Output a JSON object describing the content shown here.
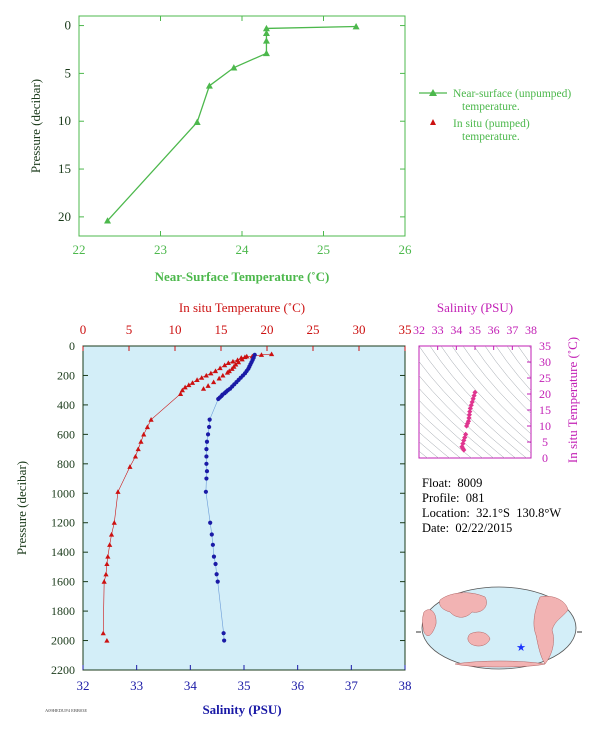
{
  "colors": {
    "near_surface": "#4cb84c",
    "in_situ": "#cc1111",
    "salinity": "#1a1aa6",
    "ts_panel": "#c21fb5",
    "plot_bg": "#d3eef8",
    "axis_dark": "#1a3a1a"
  },
  "info": {
    "float": "Float:  8009",
    "profile": "Profile:  081",
    "location": "Location:  32.1°S  130.8°W",
    "date": "Date:  02/22/2015"
  },
  "map": {
    "marker": "star",
    "marker_color": "#1a33ff"
  },
  "footer_code": "A09HEDUP4 EBB03E",
  "chart_data": [
    {
      "id": "near-surface",
      "type": "line",
      "xlabel": "Near-Surface Temperature (˚C)",
      "ylabel": "Pressure (decibar)",
      "xlim": [
        22,
        26
      ],
      "ylim": [
        22,
        -1
      ],
      "xticks": [
        22,
        23,
        24,
        25,
        26
      ],
      "yticks": [
        0,
        5,
        10,
        15,
        20
      ],
      "legend": [
        "Near-surface (unpumped) temperature.",
        "In situ (pumped) temperature."
      ],
      "legend_position": "right",
      "series": [
        {
          "name": "Near-surface (unpumped) temperature.",
          "marker": "triangle",
          "x": [
            22.35,
            23.45,
            23.6,
            23.9,
            24.3,
            24.3,
            24.3,
            24.3,
            25.4
          ],
          "y": [
            20.4,
            10.1,
            6.3,
            4.4,
            2.9,
            1.6,
            0.8,
            0.3,
            0.1
          ]
        }
      ]
    },
    {
      "id": "main-profile",
      "type": "scatter",
      "title_top": "In situ Temperature (˚C)",
      "xlabel": "Salinity (PSU)",
      "ylabel": "Pressure (decibar)",
      "ylim": [
        2200,
        0
      ],
      "yticks": [
        0,
        200,
        400,
        600,
        800,
        1000,
        1200,
        1400,
        1600,
        1800,
        2000,
        2200
      ],
      "top_axis": {
        "lim": [
          0,
          35
        ],
        "ticks": [
          0,
          5,
          10,
          15,
          20,
          25,
          30,
          35
        ]
      },
      "bottom_axis": {
        "lim": [
          32,
          38
        ],
        "ticks": [
          32,
          33,
          34,
          35,
          36,
          37,
          38
        ]
      },
      "series": [
        {
          "name": "In situ Temperature",
          "axis": "top",
          "marker": "triangle",
          "x": [
            20.5,
            19.4,
            18.4,
            17.6,
            17.2,
            16.8,
            16.3,
            15.8,
            15.4,
            14.9,
            14.4,
            13.9,
            13.4,
            12.9,
            12.4,
            11.9,
            11.5,
            11.1,
            10.8,
            10.6,
            7.4,
            7.0,
            6.6,
            6.3,
            6.0,
            5.7,
            5.1,
            3.8,
            3.4,
            3.1,
            2.9,
            2.7,
            2.6,
            2.5,
            2.3,
            2.2
          ],
          "y": [
            55,
            60,
            70,
            75,
            80,
            95,
            105,
            115,
            130,
            150,
            170,
            185,
            200,
            215,
            230,
            250,
            265,
            280,
            300,
            325,
            500,
            550,
            600,
            650,
            700,
            750,
            820,
            990,
            1200,
            1280,
            1350,
            1430,
            1480,
            1550,
            1600,
            1950
          ]
        },
        {
          "name": "In situ Temperature (surface cluster)",
          "axis": "top",
          "marker": "triangle",
          "x": [
            17.8,
            17.3,
            16.9,
            16.6,
            16.4,
            16.2,
            15.9,
            15.7,
            15.2,
            14.8,
            14.2,
            13.6,
            13.1,
            2.6
          ],
          "y": [
            70,
            90,
            110,
            125,
            140,
            155,
            170,
            180,
            200,
            220,
            245,
            270,
            290,
            2000
          ]
        },
        {
          "name": "Salinity",
          "axis": "bottom",
          "marker": "circle",
          "x": [
            35.2,
            35.18,
            35.16,
            35.14,
            35.12,
            35.1,
            35.08,
            35.05,
            35.02,
            34.98,
            34.94,
            34.9,
            34.86,
            34.82,
            34.78,
            34.74,
            34.7,
            34.67,
            34.64,
            34.6,
            34.58,
            34.55,
            34.52,
            34.36,
            34.35,
            34.33,
            34.31,
            34.3,
            34.3,
            34.3,
            34.31,
            34.3,
            34.29,
            34.37,
            34.4,
            34.42,
            34.44,
            34.47,
            34.49,
            34.51,
            34.62,
            34.63
          ],
          "y": [
            60,
            80,
            95,
            110,
            125,
            140,
            155,
            170,
            185,
            200,
            215,
            230,
            245,
            260,
            275,
            290,
            300,
            310,
            320,
            330,
            340,
            350,
            360,
            500,
            550,
            600,
            650,
            700,
            750,
            800,
            850,
            900,
            990,
            1200,
            1280,
            1350,
            1430,
            1480,
            1550,
            1600,
            1950,
            2000
          ]
        }
      ]
    },
    {
      "id": "ts-diagram",
      "type": "scatter",
      "title_top": "Salinity (PSU)",
      "ylabel": "In situ Temperature (˚C)",
      "xticks": [
        32,
        33,
        34,
        35,
        36,
        37,
        38
      ],
      "xlim": [
        32,
        38
      ],
      "yticks": [
        0,
        5,
        10,
        15,
        20,
        25,
        30,
        35
      ],
      "ylim": [
        0,
        35
      ],
      "grid": "density-contours",
      "series": [
        {
          "name": "T-S",
          "marker": "diamond",
          "x": [
            35.0,
            34.95,
            34.9,
            34.85,
            34.8,
            34.75,
            34.72,
            34.7,
            34.68,
            34.65,
            34.6,
            34.55,
            34.5,
            34.45,
            34.4,
            34.35,
            34.3,
            34.35,
            34.4
          ],
          "y": [
            20.5,
            19.5,
            18.5,
            17.5,
            16.5,
            15.5,
            14.5,
            13.5,
            12.5,
            11.5,
            10.8,
            10.0,
            7.4,
            6.4,
            5.5,
            4.5,
            3.5,
            3.0,
            2.5
          ]
        }
      ]
    }
  ]
}
